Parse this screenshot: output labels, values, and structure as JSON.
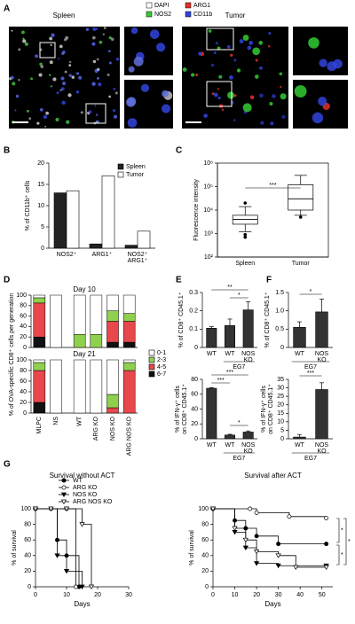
{
  "panels": [
    "A",
    "B",
    "C",
    "D",
    "E",
    "F",
    "G"
  ],
  "panel_a": {
    "spleen": "Spleen",
    "tumor": "Tumor",
    "legend": [
      {
        "name": "DAPI",
        "color": "#ffffff"
      },
      {
        "name": "NOS2",
        "color": "#33cc33"
      },
      {
        "name": "ARG1",
        "color": "#e0302a"
      },
      {
        "name": "CD11b",
        "color": "#3344dd"
      }
    ]
  },
  "chart_data": [
    {
      "type": "bar",
      "ylabel": "% of CD11b⁺ cells",
      "categories": [
        "NOS2⁺",
        "ARG1⁺",
        "NOS2⁺ ARG1⁺"
      ],
      "series": [
        {
          "name": "Spleen",
          "color": "#222222",
          "values": [
            13,
            1,
            0.7
          ]
        },
        {
          "name": "Tumor",
          "color": "#ffffff",
          "values": [
            13.5,
            17,
            4
          ]
        }
      ],
      "ylim": [
        0,
        20
      ],
      "yticks": [
        0,
        5,
        10,
        15,
        20
      ],
      "legend": "upper right"
    },
    {
      "type": "box",
      "ylabel": "Fluorescence intensity",
      "categories": [
        "Spleen",
        "Tumor"
      ],
      "boxes": [
        {
          "min": 1200,
          "q1": 2500,
          "median": 4000,
          "q3": 6000,
          "max": 14000,
          "outliers": [
            900,
            700,
            20000
          ]
        },
        {
          "min": 6000,
          "q1": 10000,
          "median": 30000,
          "q3": 120000,
          "max": 300000,
          "outliers": [
            5000
          ]
        }
      ],
      "log": true,
      "ylim": [
        100,
        1000000
      ],
      "yticks": [
        {
          "value": 100,
          "label": "10²"
        },
        {
          "value": 1000,
          "label": "10³"
        },
        {
          "value": 10000,
          "label": "10⁴"
        },
        {
          "value": 100000,
          "label": "10⁵"
        },
        {
          "value": 1000000,
          "label": "10⁶"
        }
      ],
      "annotations": [
        "***"
      ]
    },
    {
      "type": "bar",
      "stacked": true,
      "title": "Day 10",
      "ylabel": "% of OVA-specific CD8⁺ cells per generation",
      "categories": [
        null,
        null,
        null,
        null,
        null,
        null
      ],
      "series": [
        {
          "color": "#ffffff",
          "values": [
            5,
            100,
            75,
            75,
            30,
            35
          ]
        },
        {
          "color": "#8fd14f",
          "values": [
            10,
            0,
            25,
            25,
            20,
            15
          ]
        },
        {
          "color": "#e8474c",
          "values": [
            65,
            0,
            0,
            0,
            40,
            40
          ]
        },
        {
          "color": "#111111",
          "values": [
            20,
            0,
            0,
            0,
            10,
            10
          ]
        }
      ],
      "ylim": [
        0,
        100
      ],
      "yticks": [
        0,
        20,
        40,
        60,
        80,
        100
      ]
    },
    {
      "type": "bar",
      "stacked": true,
      "title": "Day 21",
      "categories": [
        "MLPC",
        "NS",
        "WT",
        "ARG KO",
        "NOS KO",
        "ARG NOS KO"
      ],
      "series": [
        {
          "name": "0-1",
          "color": "#ffffff",
          "values": [
            5,
            100,
            100,
            100,
            65,
            5
          ]
        },
        {
          "name": "2-3",
          "color": "#8fd14f",
          "values": [
            15,
            0,
            0,
            0,
            25,
            15
          ]
        },
        {
          "name": "4-5",
          "color": "#e8474c",
          "values": [
            60,
            0,
            0,
            0,
            10,
            80
          ]
        },
        {
          "name": "6-7",
          "color": "#111111",
          "values": [
            20,
            0,
            0,
            0,
            0,
            0
          ]
        }
      ],
      "ylim": [
        0,
        100
      ],
      "yticks": [
        0,
        20,
        40,
        60,
        80,
        100
      ]
    },
    {
      "type": "bar",
      "ylabel": "% of CD8⁺ CD45.1⁺",
      "categories": [
        "WT",
        "WT",
        "NOS KO"
      ],
      "group_label": "EG7",
      "series": [
        {
          "color": "#333333",
          "values": [
            0.105,
            0.12,
            0.205
          ],
          "errors": [
            0.008,
            0.035,
            0.045
          ]
        }
      ],
      "ylim": [
        0,
        0.3
      ],
      "yticks": [
        0,
        0.1,
        0.2,
        0.3
      ],
      "annotations": [
        "**",
        "*"
      ]
    },
    {
      "type": "bar",
      "ylabel": "% of IFN-γ⁺ cells on CD8⁺ CD45.1⁺",
      "categories": [
        "WT",
        "WT",
        "NOS KO"
      ],
      "group_label": "EG7",
      "series": [
        {
          "color": "#333333",
          "values": [
            68,
            5,
            9
          ],
          "errors": [
            1,
            1,
            1.5
          ]
        }
      ],
      "ylim": [
        0,
        80
      ],
      "yticks": [
        0,
        20,
        40,
        60,
        80
      ],
      "annotations": [
        "***",
        "***",
        "*"
      ]
    },
    {
      "type": "bar",
      "ylabel": "% of CD8⁺ CD45.1⁺",
      "categories": [
        "WT",
        "NOS KO"
      ],
      "group_label": "EG7",
      "series": [
        {
          "color": "#333333",
          "values": [
            0.55,
            0.97
          ],
          "errors": [
            0.15,
            0.35
          ]
        }
      ],
      "ylim": [
        0,
        1.5
      ],
      "yticks": [
        0,
        0.5,
        {
          "value": 1,
          "label": "1.0"
        },
        1.5
      ],
      "annotations": [
        "*"
      ]
    },
    {
      "type": "bar",
      "ylabel": "% of IFN-γ⁺ cells on CD8⁺ CD45.1⁺",
      "categories": [
        "WT",
        "NOS KO"
      ],
      "group_label": "EG7",
      "series": [
        {
          "color": "#333333",
          "values": [
            1,
            29
          ],
          "errors": [
            1.5,
            4
          ]
        }
      ],
      "ylim": [
        0,
        35
      ],
      "yticks": [
        0,
        5,
        10,
        15,
        20,
        25,
        30,
        35
      ],
      "annotations": [
        "***"
      ]
    },
    {
      "type": "line",
      "title": "Survival without ACT",
      "xlabel": "Days",
      "ylabel": "% of survival",
      "series": [
        {
          "name": "WT",
          "marker": "circle",
          "fill": "#000000",
          "x": [
            0,
            7,
            10,
            14
          ],
          "values": [
            100,
            60,
            40,
            0
          ]
        },
        {
          "name": "ARG KO",
          "marker": "circle",
          "fill": "#ffffff",
          "x": [
            0,
            5,
            10,
            13
          ],
          "values": [
            100,
            100,
            100,
            0
          ]
        },
        {
          "name": "NOS KO",
          "marker": "triangle",
          "fill": "#000000",
          "x": [
            0,
            7,
            10,
            15
          ],
          "values": [
            100,
            40,
            20,
            0
          ]
        },
        {
          "name": "ARG NOS KO",
          "marker": "triangle",
          "fill": "#ffffff",
          "x": [
            0,
            5,
            10,
            15,
            18
          ],
          "values": [
            100,
            100,
            100,
            80,
            0
          ]
        }
      ],
      "xlim": [
        0,
        30
      ],
      "xticks": [
        0,
        10,
        20,
        30
      ],
      "ylim": [
        0,
        100
      ],
      "yticks": [
        0,
        20,
        40,
        60,
        80,
        100
      ],
      "legend": "upper left"
    },
    {
      "type": "line",
      "title": "Survival after ACT",
      "xlabel": "Days",
      "ylabel": "% of survival",
      "series": [
        {
          "marker": "circle",
          "fill": "#000000",
          "x": [
            0,
            10,
            15,
            20,
            30,
            52
          ],
          "values": [
            100,
            85,
            75,
            65,
            55,
            55
          ]
        },
        {
          "marker": "circle",
          "fill": "#ffffff",
          "x": [
            0,
            17,
            20,
            35,
            52
          ],
          "values": [
            100,
            100,
            95,
            90,
            88
          ]
        },
        {
          "marker": "triangle",
          "fill": "#000000",
          "x": [
            0,
            10,
            15,
            20,
            30,
            52
          ],
          "values": [
            100,
            70,
            50,
            30,
            27,
            27
          ]
        },
        {
          "marker": "triangle",
          "fill": "#ffffff",
          "x": [
            0,
            10,
            15,
            20,
            30,
            38,
            52
          ],
          "values": [
            100,
            75,
            60,
            45,
            40,
            25,
            25
          ]
        }
      ],
      "xlim": [
        0,
        55
      ],
      "xticks": [
        0,
        10,
        20,
        30,
        40,
        50
      ],
      "ylim": [
        0,
        100
      ],
      "yticks": [
        0,
        20,
        40,
        60,
        80,
        100
      ],
      "annotations": [
        "*",
        "*",
        "*"
      ]
    }
  ]
}
